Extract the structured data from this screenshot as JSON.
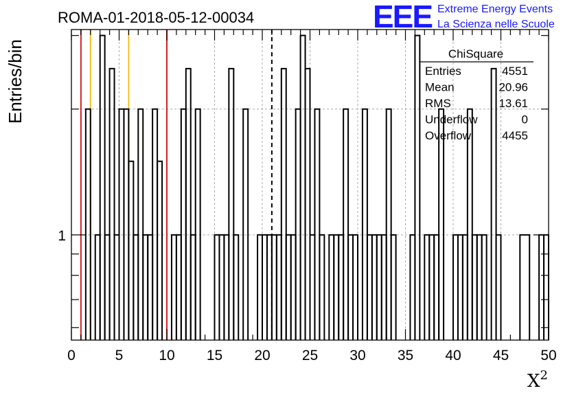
{
  "chart_data": {
    "type": "histogram",
    "title": "ROMA-01-2018-05-12-00034",
    "xlabel": "X",
    "xlabel_superscript": "2",
    "ylabel": "Entries/bin",
    "xlim": [
      0,
      50
    ],
    "ylim": [
      0.56,
      3.1
    ],
    "log_y": true,
    "grid": true,
    "x_ticks": [
      "0",
      "5",
      "10",
      "15",
      "20",
      "25",
      "30",
      "35",
      "40",
      "45",
      "50"
    ],
    "y_ticks": [
      "1"
    ],
    "bin_width": 0.5,
    "bins": [
      [
        1.5,
        2,
        2
      ],
      [
        2.5,
        3,
        1
      ],
      [
        3,
        3.5,
        3
      ],
      [
        3.5,
        4,
        1
      ],
      [
        4,
        4.5,
        2.5
      ],
      [
        4.5,
        5,
        1
      ],
      [
        5,
        5.5,
        2
      ],
      [
        5.5,
        6,
        2
      ],
      [
        6,
        6.5,
        1.5
      ],
      [
        6.5,
        7,
        1
      ],
      [
        7,
        7.5,
        2
      ],
      [
        7.5,
        8,
        1
      ],
      [
        8,
        8.5,
        1
      ],
      [
        8.5,
        9,
        2
      ],
      [
        9,
        9.5,
        1.5
      ],
      [
        10.5,
        11,
        1
      ],
      [
        11,
        11.5,
        1
      ],
      [
        11.5,
        12,
        2
      ],
      [
        12,
        12.5,
        2.5
      ],
      [
        12.5,
        13,
        1
      ],
      [
        13,
        13.5,
        2
      ],
      [
        15,
        15.5,
        1
      ],
      [
        15.5,
        16,
        1
      ],
      [
        16,
        16.5,
        1
      ],
      [
        16.5,
        17,
        2.5
      ],
      [
        17,
        17.5,
        1
      ],
      [
        18,
        18.5,
        2
      ],
      [
        19.5,
        20,
        1
      ],
      [
        20,
        20.5,
        1
      ],
      [
        20.5,
        21,
        1
      ],
      [
        21,
        21.5,
        1
      ],
      [
        21.5,
        22,
        1
      ],
      [
        22,
        22.5,
        2.5
      ],
      [
        22.5,
        23,
        1
      ],
      [
        23,
        23.5,
        1
      ],
      [
        23.5,
        24,
        2
      ],
      [
        24,
        24.5,
        3
      ],
      [
        24.5,
        25,
        2.5
      ],
      [
        25,
        25.5,
        1
      ],
      [
        25.5,
        26,
        2
      ],
      [
        26,
        26.5,
        1
      ],
      [
        27,
        27.5,
        1
      ],
      [
        27.5,
        28,
        1
      ],
      [
        28,
        28.5,
        1
      ],
      [
        28.5,
        29,
        2
      ],
      [
        29,
        29.5,
        1
      ],
      [
        29.5,
        30,
        1
      ],
      [
        30.5,
        31,
        2
      ],
      [
        31,
        31.5,
        1
      ],
      [
        31.5,
        32,
        1
      ],
      [
        32,
        32.5,
        1
      ],
      [
        32.5,
        33,
        1
      ],
      [
        33,
        33.5,
        2
      ],
      [
        33.5,
        34,
        1
      ],
      [
        35.5,
        36,
        1
      ],
      [
        36,
        36.5,
        3
      ],
      [
        37,
        37.5,
        1
      ],
      [
        37.5,
        38,
        1
      ],
      [
        38,
        38.5,
        1
      ],
      [
        38.5,
        39,
        2
      ],
      [
        40,
        40.5,
        1
      ],
      [
        40.5,
        41,
        1
      ],
      [
        41,
        41.5,
        1
      ],
      [
        41.5,
        42,
        2
      ],
      [
        42,
        42.5,
        1
      ],
      [
        42.5,
        43,
        1
      ],
      [
        43,
        43.5,
        1
      ],
      [
        44,
        44.5,
        2.5
      ],
      [
        44.5,
        45,
        1
      ],
      [
        47,
        48,
        1
      ],
      [
        49,
        49.5,
        1
      ],
      [
        49.5,
        50,
        1
      ]
    ],
    "vertical_lines": [
      {
        "x": 1,
        "color": "#d42020",
        "style": "solid"
      },
      {
        "x": 2,
        "color": "#f0c020",
        "style": "solid"
      },
      {
        "x": 6,
        "color": "#f0c020",
        "style": "solid"
      },
      {
        "x": 10,
        "color": "#d42020",
        "style": "solid"
      },
      {
        "x": 21,
        "color": "#000000",
        "style": "dashed"
      }
    ],
    "stats_box": {
      "title": "ChiSquare",
      "rows": [
        {
          "label": "Entries",
          "value": "4551"
        },
        {
          "label": "Mean",
          "value": "20.96"
        },
        {
          "label": "RMS",
          "value": "13.61"
        },
        {
          "label": "Underflow",
          "value": "0"
        },
        {
          "label": "Overflow",
          "value": "4455"
        }
      ]
    }
  },
  "logo": {
    "mark": "EEE",
    "line1": "Extreme Energy Events",
    "line2": "La Scienza nelle Scuole",
    "color": "#1a1aff"
  }
}
